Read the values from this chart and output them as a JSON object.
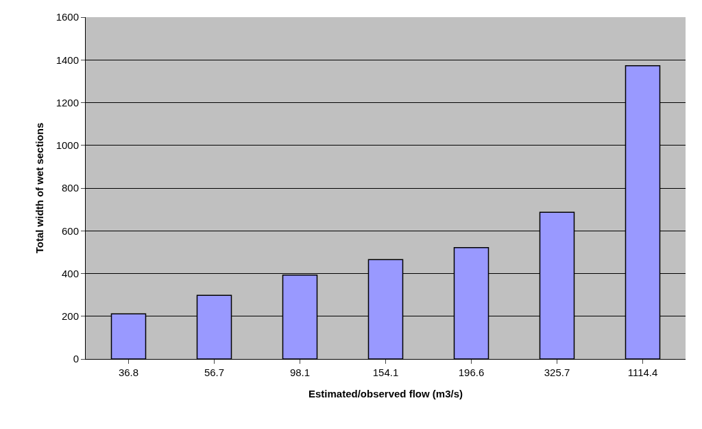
{
  "chart_data": {
    "type": "bar",
    "xlabel": "Estimated/observed flow (m3/s)",
    "ylabel": "Total width of wet sections",
    "categories": [
      "36.8",
      "56.7",
      "98.1",
      "154.1",
      "196.6",
      "325.7",
      "1114.4"
    ],
    "values": [
      211,
      298,
      393,
      465,
      521,
      687,
      1373
    ],
    "color": "#9999ff",
    "ylim": [
      0,
      1600
    ],
    "yticks": [
      0,
      200,
      400,
      600,
      800,
      1000,
      1200,
      1400,
      1600
    ],
    "grid": "y"
  }
}
